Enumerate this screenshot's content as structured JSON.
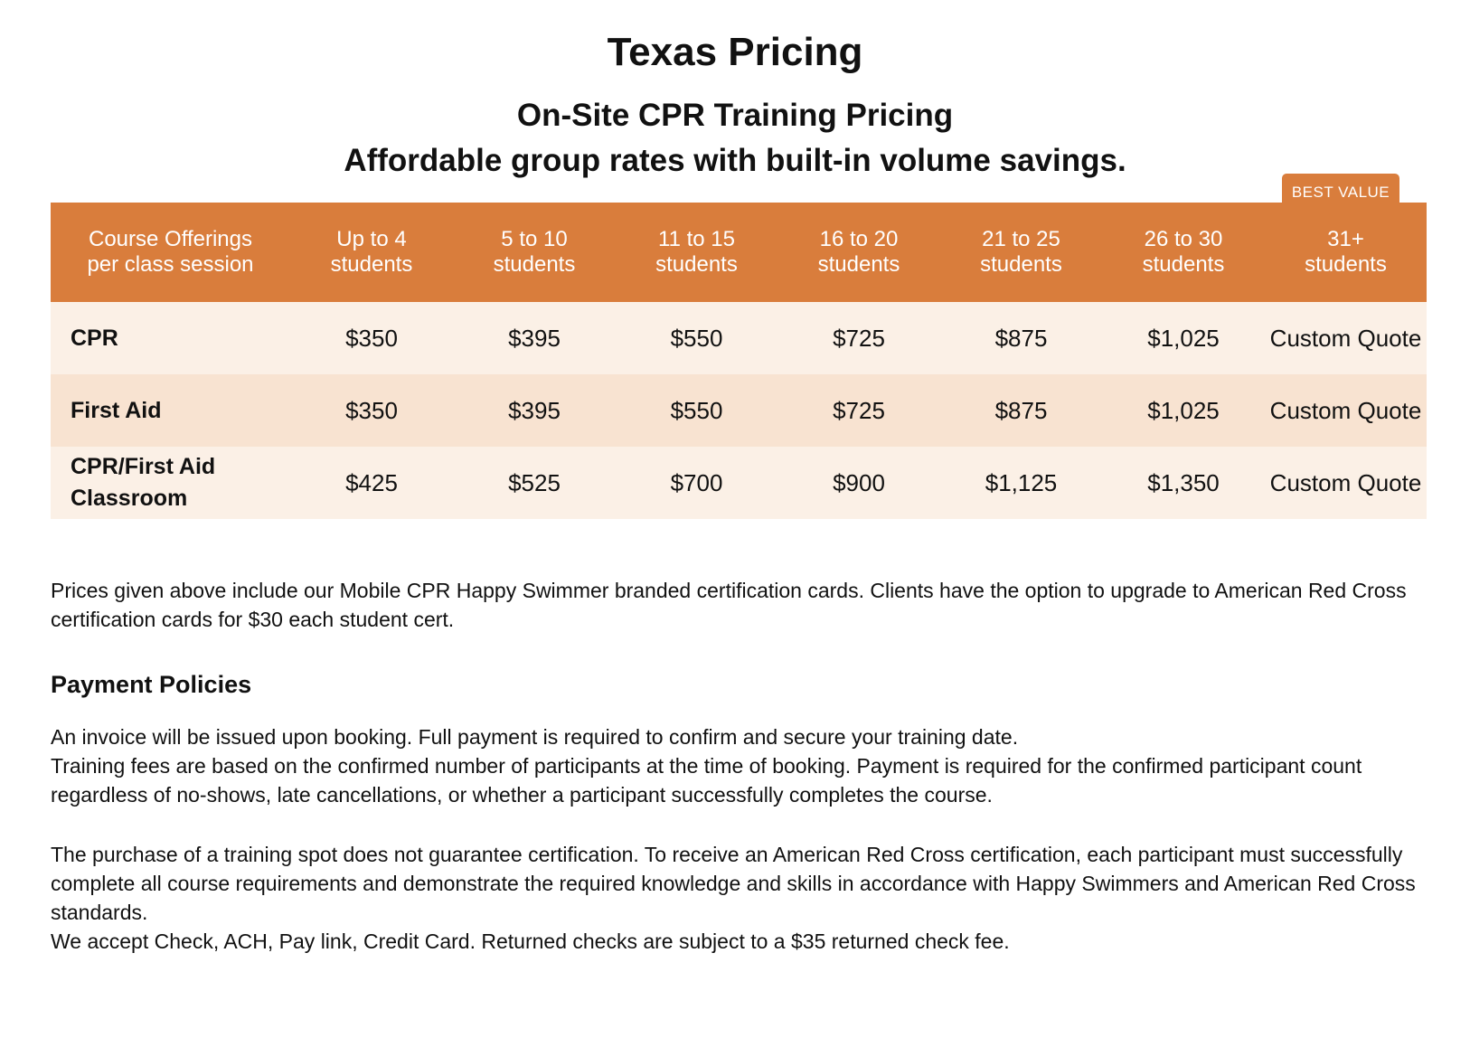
{
  "page": {
    "title": "Texas Pricing",
    "subtitle_line1": "On-Site CPR Training Pricing",
    "subtitle_line2": "Affordable group rates with built-in volume savings."
  },
  "table": {
    "badge": "BEST VALUE",
    "headers": [
      [
        "Course Offerings",
        "per class session"
      ],
      [
        "Up to 4",
        "students"
      ],
      [
        "5 to 10",
        "students"
      ],
      [
        "11 to 15",
        "students"
      ],
      [
        "16 to 20",
        "students"
      ],
      [
        "21 to 25",
        "students"
      ],
      [
        "26 to 30",
        "students"
      ],
      [
        "31+",
        "students"
      ]
    ],
    "rows": [
      {
        "course": [
          "CPR"
        ],
        "prices": [
          "$350",
          "$395",
          "$550",
          "$725",
          "$875",
          "$1,025",
          "Custom Quote"
        ]
      },
      {
        "course": [
          "First Aid"
        ],
        "prices": [
          "$350",
          "$395",
          "$550",
          "$725",
          "$875",
          "$1,025",
          "Custom Quote"
        ]
      },
      {
        "course": [
          "CPR/First Aid",
          "Classroom"
        ],
        "prices": [
          "$425",
          "$525",
          "$700",
          "$900",
          "$1,125",
          "$1,350",
          "Custom Quote"
        ]
      }
    ]
  },
  "notes": {
    "prices_note": "Prices given above include our Mobile CPR Happy Swimmer branded certification cards. Clients have the option to upgrade to American Red Cross certification cards for $30 each student cert."
  },
  "payment": {
    "heading": "Payment Policies",
    "invoice": "An invoice will be issued upon booking. Full payment is required to confirm and secure your training date.",
    "fees": "Training fees are based on the confirmed number of participants at the time of booking. Payment is required for the confirmed participant count regardless of no-shows, late cancellations, or whether a participant successfully completes the course.",
    "certification": "The purchase of a training spot does not guarantee certification. To receive an American Red Cross certification, each participant must successfully complete all course requirements and demonstrate the required knowledge and skills in accordance with Happy Swimmers and American Red Cross standards.",
    "methods": "We accept Check, ACH, Pay link, Credit Card. Returned checks are subject to a $35 returned check fee."
  }
}
